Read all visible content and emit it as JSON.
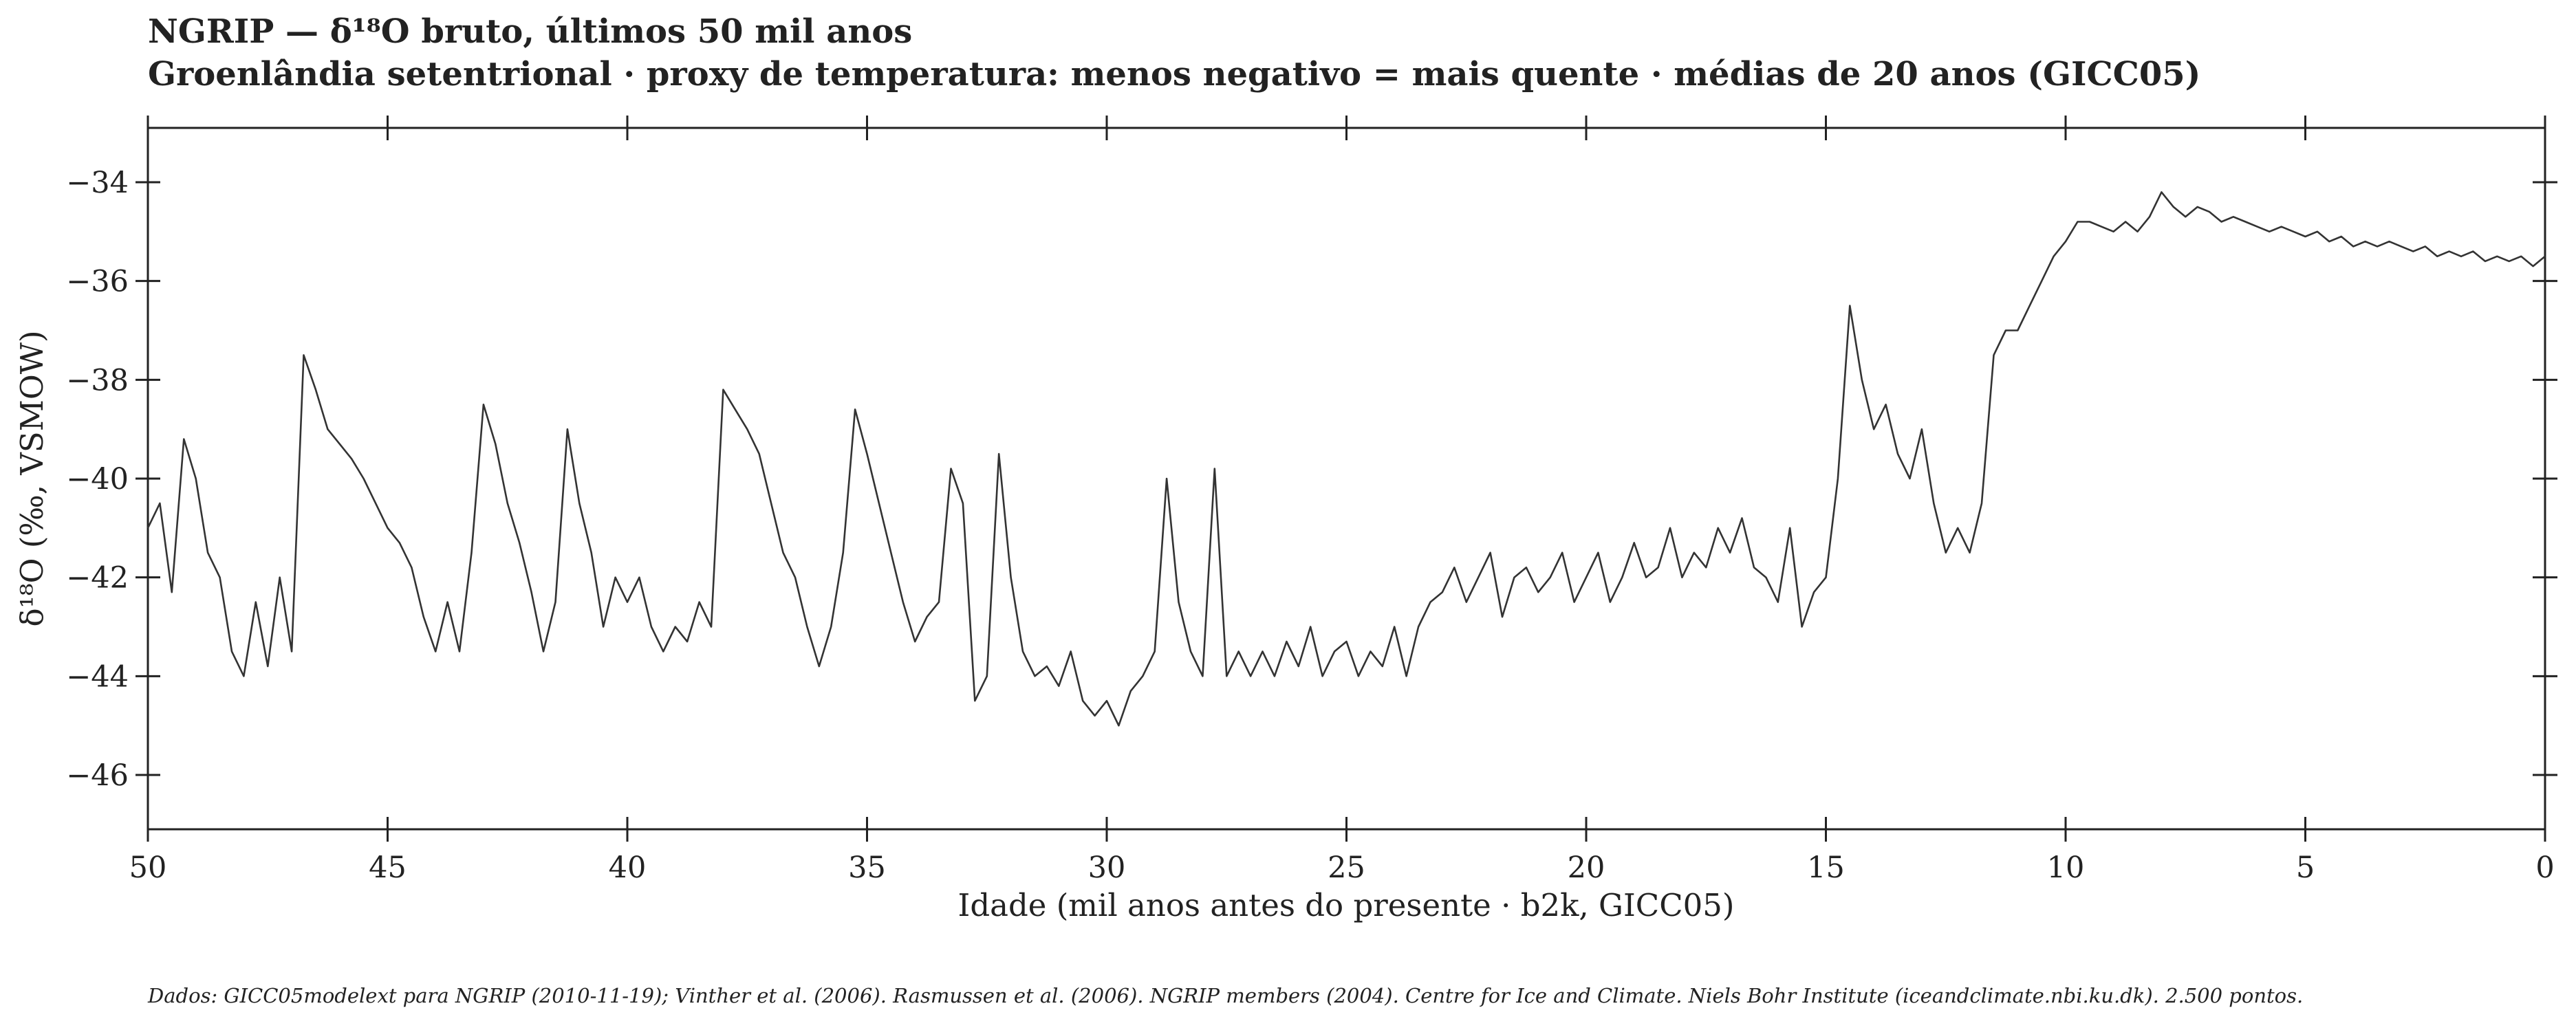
{
  "chart_data": {
    "type": "line",
    "title": "NGRIP — δ¹⁸O bruto, últimos 50 mil anos",
    "subtitle": "Groenlândia setentrional · proxy de temperatura: menos negativo = mais quente · médias de 20 anos (GICC05)",
    "x_label": "Idade (mil anos antes do presente · b2k, GICC05)",
    "y_label": "δ¹⁸O (‰, VSMOW)",
    "note": "Dados: GICC05modelext para NGRIP (2010-11-19); Vinther et al. (2006). Rasmussen et al. (2006). NGRIP members (2004). Centre for Ice and Climate. Niels Bohr Institute (iceandclimate.nbi.ku.dk). 2.500 pontos.",
    "color": "#333333",
    "xlim": [
      50,
      0
    ],
    "ylim": [
      -47.1,
      -32.9
    ],
    "xticks": [
      50,
      45,
      40,
      35,
      30,
      25,
      20,
      15,
      10,
      5,
      0
    ],
    "yticks": [
      {
        "value": -34,
        "label": "−34"
      },
      {
        "value": -36,
        "label": "−36"
      },
      {
        "value": -38,
        "label": "−38"
      },
      {
        "value": -40,
        "label": "−40"
      },
      {
        "value": -42,
        "label": "−42"
      },
      {
        "value": -44,
        "label": "−44"
      },
      {
        "value": -46,
        "label": "−46"
      }
    ],
    "x": [
      50,
      49.75,
      49.5,
      49.25,
      49,
      48.75,
      48.5,
      48.25,
      48,
      47.75,
      47.5,
      47.25,
      47,
      46.75,
      46.5,
      46.25,
      46,
      45.75,
      45.5,
      45.25,
      45,
      44.75,
      44.5,
      44.25,
      44,
      43.75,
      43.5,
      43.25,
      43,
      42.75,
      42.5,
      42.25,
      42,
      41.75,
      41.5,
      41.25,
      41,
      40.75,
      40.5,
      40.25,
      40,
      39.75,
      39.5,
      39.25,
      39,
      38.75,
      38.5,
      38.25,
      38,
      37.75,
      37.5,
      37.25,
      37,
      36.75,
      36.5,
      36.25,
      36,
      35.75,
      35.5,
      35.25,
      35,
      34.75,
      34.5,
      34.25,
      34,
      33.75,
      33.5,
      33.25,
      33,
      32.75,
      32.5,
      32.25,
      32,
      31.75,
      31.5,
      31.25,
      31,
      30.75,
      30.5,
      30.25,
      30,
      29.75,
      29.5,
      29.25,
      29,
      28.75,
      28.5,
      28.25,
      28,
      27.75,
      27.5,
      27.25,
      27,
      26.75,
      26.5,
      26.25,
      26,
      25.75,
      25.5,
      25.25,
      25,
      24.75,
      24.5,
      24.25,
      24,
      23.75,
      23.5,
      23.25,
      23,
      22.75,
      22.5,
      22.25,
      22,
      21.75,
      21.5,
      21.25,
      21,
      20.75,
      20.5,
      20.25,
      20,
      19.75,
      19.5,
      19.25,
      19,
      18.75,
      18.5,
      18.25,
      18,
      17.75,
      17.5,
      17.25,
      17,
      16.75,
      16.5,
      16.25,
      16,
      15.75,
      15.5,
      15.25,
      15,
      14.75,
      14.5,
      14.25,
      14,
      13.75,
      13.5,
      13.25,
      13,
      12.75,
      12.5,
      12.25,
      12,
      11.75,
      11.5,
      11.25,
      11,
      10.75,
      10.5,
      10.25,
      10,
      9.75,
      9.5,
      9.25,
      9,
      8.75,
      8.5,
      8.25,
      8,
      7.75,
      7.5,
      7.25,
      7,
      6.75,
      6.5,
      6.25,
      6,
      5.75,
      5.5,
      5.25,
      5,
      4.75,
      4.5,
      4.25,
      4,
      3.75,
      3.5,
      3.25,
      3,
      2.75,
      2.5,
      2.25,
      2,
      1.75,
      1.5,
      1.25,
      1,
      0.75,
      0.5,
      0.25,
      0
    ],
    "values": [
      -41,
      -40.5,
      -42.3,
      -39.2,
      -40,
      -41.5,
      -42,
      -43.5,
      -44,
      -42.5,
      -43.8,
      -42,
      -43.5,
      -37.5,
      -38.2,
      -39,
      -39.3,
      -39.6,
      -40,
      -40.5,
      -41,
      -41.3,
      -41.8,
      -42.8,
      -43.5,
      -42.5,
      -43.5,
      -41.5,
      -38.5,
      -39.3,
      -40.5,
      -41.3,
      -42.3,
      -43.5,
      -42.5,
      -39,
      -40.5,
      -41.5,
      -43,
      -42,
      -42.5,
      -42,
      -43,
      -43.5,
      -43,
      -43.3,
      -42.5,
      -43,
      -38.2,
      -38.6,
      -39,
      -39.5,
      -40.5,
      -41.5,
      -42,
      -43,
      -43.8,
      -43,
      -41.5,
      -38.6,
      -39.5,
      -40.5,
      -41.5,
      -42.5,
      -43.3,
      -42.8,
      -42.5,
      -39.8,
      -40.5,
      -44.5,
      -44,
      -39.5,
      -42,
      -43.5,
      -44,
      -43.8,
      -44.2,
      -43.5,
      -44.5,
      -44.8,
      -44.5,
      -45,
      -44.3,
      -44,
      -43.5,
      -40,
      -42.5,
      -43.5,
      -44,
      -39.8,
      -44,
      -43.5,
      -44,
      -43.5,
      -44,
      -43.3,
      -43.8,
      -43,
      -44,
      -43.5,
      -43.3,
      -44,
      -43.5,
      -43.8,
      -43,
      -44,
      -43,
      -42.5,
      -42.3,
      -41.8,
      -42.5,
      -42,
      -41.5,
      -42.8,
      -42,
      -41.8,
      -42.3,
      -42,
      -41.5,
      -42.5,
      -42,
      -41.5,
      -42.5,
      -42,
      -41.3,
      -42,
      -41.8,
      -41,
      -42,
      -41.5,
      -41.8,
      -41,
      -41.5,
      -40.8,
      -41.8,
      -42,
      -42.5,
      -41,
      -43,
      -42.3,
      -42,
      -40,
      -36.5,
      -38,
      -39,
      -38.5,
      -39.5,
      -40,
      -39,
      -40.5,
      -41.5,
      -41,
      -41.5,
      -40.5,
      -37.5,
      -37,
      -37,
      -36.5,
      -36,
      -35.5,
      -35.2,
      -34.8,
      -34.8,
      -34.9,
      -35,
      -34.8,
      -35,
      -34.7,
      -34.2,
      -34.5,
      -34.7,
      -34.5,
      -34.6,
      -34.8,
      -34.7,
      -34.8,
      -34.9,
      -35,
      -34.9,
      -35,
      -35.1,
      -35,
      -35.2,
      -35.1,
      -35.3,
      -35.2,
      -35.3,
      -35.2,
      -35.3,
      -35.4,
      -35.3,
      -35.5,
      -35.4,
      -35.5,
      -35.4,
      -35.6,
      -35.5,
      -35.6,
      -35.5,
      -35.7,
      -35.5
    ]
  }
}
